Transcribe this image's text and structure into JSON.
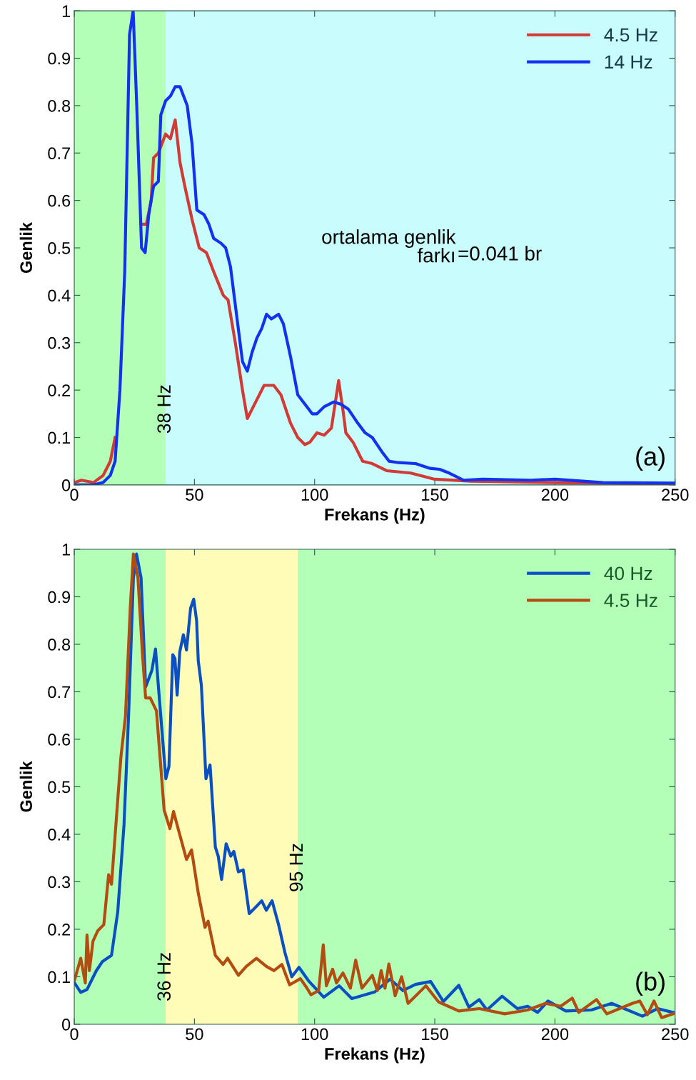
{
  "chart_data": [
    {
      "type": "line",
      "xlabel": "Frekans (Hz)",
      "ylabel": "Genlik",
      "xlim": [
        0,
        250
      ],
      "ylim": [
        0,
        1
      ],
      "xticks": [
        0,
        50,
        100,
        150,
        200,
        250
      ],
      "yticks": [
        0,
        0.1,
        0.2,
        0.3,
        0.4,
        0.5,
        0.6,
        0.7,
        0.8,
        0.9,
        1
      ],
      "grid": false,
      "legend": "top right",
      "marker": "none",
      "line_style": "solid",
      "bands": [
        {
          "axis": "x",
          "from": 0,
          "to": 38,
          "label": "38 Hz",
          "color": "#b3ffb8"
        },
        {
          "axis": "x",
          "from": 38,
          "to": 250,
          "color": "#c8fcfd"
        }
      ],
      "annotations": [
        "ortalama genlik",
        "farkı",
        "=0.041 br",
        "(a)"
      ],
      "series": [
        {
          "name": "4.5 Hz",
          "color": "#d23a36",
          "x": [
            0,
            3,
            8,
            12,
            15,
            17,
            19,
            21,
            23,
            24.5,
            26,
            28,
            30,
            32,
            33,
            35,
            38,
            40,
            42,
            44,
            46,
            49,
            52,
            55,
            58,
            62,
            64,
            67,
            70,
            72,
            76,
            79,
            83,
            86,
            90,
            93,
            96,
            98,
            101,
            104,
            107,
            110,
            112,
            113,
            116,
            120,
            124,
            130,
            140,
            150,
            165,
            200,
            250
          ],
          "values": [
            0.005,
            0.01,
            0.005,
            0.02,
            0.05,
            0.1,
            null,
            null,
            null,
            null,
            null,
            0.55,
            0.55,
            0.6,
            0.69,
            0.7,
            0.74,
            0.73,
            0.77,
            0.68,
            0.63,
            0.56,
            0.5,
            0.49,
            0.45,
            0.4,
            0.39,
            0.3,
            0.2,
            0.14,
            0.18,
            0.21,
            0.21,
            0.19,
            0.13,
            0.1,
            0.085,
            0.09,
            0.11,
            0.105,
            0.12,
            0.22,
            0.15,
            0.11,
            0.09,
            0.05,
            0.045,
            0.03,
            0.025,
            0.012,
            0.008,
            0.005,
            0.002
          ]
        },
        {
          "name": "14 Hz",
          "color": "#1232f0",
          "x": [
            0,
            8,
            12,
            15,
            17,
            19,
            21,
            22,
            23,
            24.5,
            26,
            28,
            29.5,
            31,
            33,
            35,
            36,
            38,
            40,
            42,
            44,
            47,
            49,
            51,
            54,
            56,
            58,
            61,
            63,
            65,
            68,
            70,
            72,
            74,
            76,
            78,
            80,
            82,
            85,
            87,
            90,
            93,
            96,
            99,
            101,
            104,
            108,
            111,
            114,
            118,
            121,
            124,
            128,
            131,
            135,
            142,
            148,
            152,
            156,
            162,
            170,
            190,
            200,
            220,
            250
          ],
          "values": [
            0,
            0,
            0.005,
            0.02,
            0.05,
            0.2,
            0.45,
            0.7,
            0.95,
            1.0,
            0.8,
            0.5,
            0.49,
            0.57,
            0.63,
            0.64,
            0.78,
            0.81,
            0.82,
            0.84,
            0.84,
            0.8,
            0.72,
            0.58,
            0.57,
            0.55,
            0.52,
            0.51,
            0.5,
            0.46,
            0.34,
            0.26,
            0.24,
            0.28,
            0.31,
            0.33,
            0.36,
            0.35,
            0.36,
            0.34,
            0.27,
            0.19,
            0.17,
            0.15,
            0.15,
            0.165,
            0.175,
            0.17,
            0.16,
            0.13,
            0.11,
            0.1,
            0.07,
            0.05,
            0.047,
            0.045,
            0.035,
            0.033,
            0.025,
            0.01,
            0.012,
            0.01,
            0.012,
            0.005,
            0.004
          ]
        }
      ]
    },
    {
      "type": "line",
      "xlabel": "Frekans (Hz)",
      "ylabel": "Genlik",
      "xlim": [
        0,
        250
      ],
      "ylim": [
        0,
        1
      ],
      "xticks": [
        0,
        50,
        100,
        150,
        200,
        250
      ],
      "yticks": [
        0,
        0.1,
        0.2,
        0.3,
        0.4,
        0.5,
        0.6,
        0.7,
        0.8,
        0.9,
        1
      ],
      "grid": false,
      "legend": "top right",
      "marker": "none",
      "line_style": "solid",
      "bands": [
        {
          "axis": "x",
          "from": 0,
          "to": 38,
          "label": "36 Hz",
          "color": "#b3ffb8"
        },
        {
          "axis": "x",
          "from": 38,
          "to": 93,
          "label": "95 Hz",
          "color": "#fffcb8"
        },
        {
          "axis": "x",
          "from": 93,
          "to": 250,
          "color": "#b3ffb8"
        }
      ],
      "annotations": [
        "(b)"
      ],
      "series": [
        {
          "name": "40 Hz",
          "color": "#0a50c2",
          "x": [
            0.1,
            2.7,
            5.3,
            9.1,
            11.7,
            15.5,
            18.1,
            20.7,
            22.6,
            24.6,
            25.9,
            27.8,
            29.7,
            32.3,
            33.8,
            35.5,
            38.1,
            39.4,
            41.0,
            41.9,
            42.8,
            43.9,
            45.4,
            46.7,
            48.4,
            49.7,
            50.9,
            51.6,
            52.9,
            54.8,
            56.5,
            58.7,
            59.9,
            61.3,
            63.2,
            65.1,
            66.4,
            68.3,
            70.3,
            72.8,
            74.8,
            78.0,
            79.9,
            82.3,
            85.1,
            87.7,
            90.5,
            93.5,
            97.4,
            103.8,
            110.2,
            115.5,
            125.0,
            131.4,
            136.7,
            142.0,
            148.3,
            153.6,
            160.0,
            164.2,
            168.5,
            171.7,
            178.0,
            184.4,
            188.6,
            192.8,
            197.1,
            204.5,
            215.1,
            223.6,
            236.4,
            242.7,
            249.1
          ],
          "values": [
            0.087,
            0.067,
            0.073,
            0.112,
            0.132,
            0.145,
            0.237,
            0.42,
            0.65,
            0.94,
            0.99,
            0.94,
            0.71,
            0.745,
            0.79,
            0.68,
            0.517,
            0.543,
            0.778,
            0.77,
            0.693,
            0.784,
            0.82,
            0.788,
            0.876,
            0.895,
            0.85,
            0.765,
            0.713,
            0.517,
            0.546,
            0.373,
            0.354,
            0.305,
            0.38,
            0.354,
            0.364,
            0.321,
            0.325,
            0.233,
            0.243,
            0.26,
            0.24,
            0.26,
            0.208,
            0.15,
            0.1,
            0.12,
            0.092,
            0.057,
            0.081,
            0.054,
            0.068,
            0.095,
            0.071,
            0.084,
            0.09,
            0.048,
            0.082,
            0.036,
            0.052,
            0.03,
            0.059,
            0.033,
            0.038,
            0.025,
            0.049,
            0.028,
            0.03,
            0.044,
            0.017,
            0.033,
            0.025
          ]
        },
        {
          "name": "4.5 Hz",
          "color": "#b44c12",
          "x": [
            0.1,
            2.7,
            4.6,
            5.3,
            6.3,
            7.8,
            9.8,
            12.3,
            14.3,
            15.5,
            17.5,
            19.4,
            21.3,
            23.3,
            24.6,
            26.5,
            28.4,
            29.7,
            31.6,
            34.2,
            37.4,
            39.8,
            41.3,
            43.2,
            46.7,
            48.8,
            51.6,
            54.4,
            55.7,
            58.7,
            61.9,
            63.8,
            68.3,
            71.6,
            75.8,
            79.9,
            83.1,
            86.4,
            89.6,
            94.1,
            96.7,
            98.5,
            101.7,
            103.6,
            104.9,
            107.5,
            109.1,
            111.8,
            114.9,
            117.1,
            119.7,
            124.0,
            126.1,
            127.7,
            129.3,
            130.9,
            133.5,
            136.2,
            138.9,
            146.3,
            151.6,
            160.0,
            168.5,
            179.1,
            188.6,
            196.1,
            202.4,
            207.2,
            209.9,
            217.3,
            221.6,
            232.2,
            235.3,
            238.5,
            241.2,
            244.4,
            249.1
          ],
          "values": [
            0.093,
            0.139,
            0.087,
            0.188,
            0.113,
            0.175,
            0.197,
            0.21,
            0.315,
            0.295,
            0.432,
            0.562,
            0.648,
            0.876,
            0.99,
            0.94,
            0.778,
            0.687,
            0.687,
            0.66,
            0.451,
            0.412,
            0.448,
            0.412,
            0.347,
            0.367,
            0.276,
            0.204,
            0.217,
            0.145,
            0.126,
            0.139,
            0.103,
            0.122,
            0.139,
            0.122,
            0.113,
            0.126,
            0.083,
            0.096,
            0.077,
            0.062,
            0.071,
            0.167,
            0.081,
            0.116,
            0.087,
            0.108,
            0.076,
            0.135,
            0.076,
            0.103,
            0.071,
            0.113,
            0.076,
            0.127,
            0.06,
            0.1,
            0.044,
            0.081,
            0.047,
            0.028,
            0.033,
            0.022,
            0.03,
            0.044,
            0.038,
            0.055,
            0.025,
            0.052,
            0.022,
            0.044,
            0.049,
            0.02,
            0.049,
            0.014,
            0.022
          ]
        }
      ]
    }
  ]
}
